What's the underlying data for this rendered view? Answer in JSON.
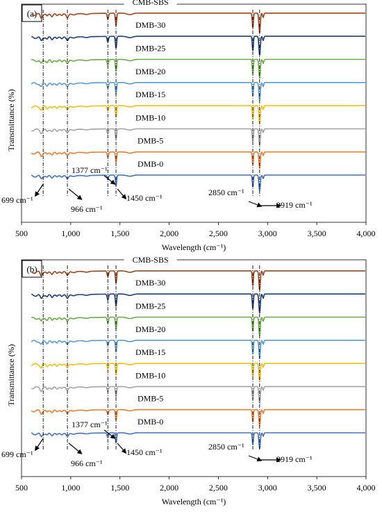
{
  "chart_data": [
    {
      "type": "line",
      "panel_label": "(a)",
      "xlabel": "Wavelength (cm⁻¹)",
      "ylabel": "Transmittance (%)",
      "xlim": [
        500,
        4000
      ],
      "xticks": [
        "500",
        "1,000",
        "1,500",
        "2,000",
        "2,500",
        "3,000",
        "3,500",
        "4,000"
      ],
      "xtick_values": [
        500,
        1000,
        1500,
        2000,
        2500,
        3000,
        3500,
        4000
      ],
      "grid": false,
      "series": [
        {
          "name": "CMB-SBS",
          "color": "#A0461E"
        },
        {
          "name": "DMB-30",
          "color": "#1F3F78"
        },
        {
          "name": "DMB-25",
          "color": "#6AAC45"
        },
        {
          "name": "DMB-20",
          "color": "#5B9BD5"
        },
        {
          "name": "DMB-15",
          "color": "#F2C014"
        },
        {
          "name": "DMB-10",
          "color": "#A5A5A5"
        },
        {
          "name": "DMB-5",
          "color": "#ED7D31"
        },
        {
          "name": "DMB-0",
          "color": "#4472C4"
        }
      ],
      "reference_lines_x": [
        720,
        966,
        1377,
        1460,
        2850,
        2919
      ],
      "annotations": [
        {
          "text": "699 cm⁻¹",
          "x": 699
        },
        {
          "text": "966 cm⁻¹",
          "x": 966
        },
        {
          "text": "1377 cm⁻¹",
          "x": 1377
        },
        {
          "text": "1450 cm⁻¹",
          "x": 1450
        },
        {
          "text": "2850 cm⁻¹",
          "x": 2850
        },
        {
          "text": "2919 cm⁻¹",
          "x": 2919
        }
      ]
    },
    {
      "type": "line",
      "panel_label": "(b)",
      "xlabel": "Wavelength (cm⁻¹)",
      "ylabel": "Transmittance (%)",
      "xlim": [
        500,
        4000
      ],
      "xticks": [
        "500",
        "1,000",
        "1,500",
        "2,000",
        "2,500",
        "3,000",
        "3,500",
        "4,000"
      ],
      "xtick_values": [
        500,
        1000,
        1500,
        2000,
        2500,
        3000,
        3500,
        4000
      ],
      "grid": false,
      "series": [
        {
          "name": "CMB-SBS",
          "color": "#A0461E"
        },
        {
          "name": "DMB-30",
          "color": "#1F3F78"
        },
        {
          "name": "DMB-25",
          "color": "#6AAC45"
        },
        {
          "name": "DMB-20",
          "color": "#5B9BD5"
        },
        {
          "name": "DMB-15",
          "color": "#F2C014"
        },
        {
          "name": "DMB-10",
          "color": "#A5A5A5"
        },
        {
          "name": "DMB-5",
          "color": "#ED7D31"
        },
        {
          "name": "DMB-0",
          "color": "#4472C4"
        }
      ],
      "reference_lines_x": [
        720,
        966,
        1377,
        1460,
        2850,
        2919
      ],
      "annotations": [
        {
          "text": "699 cm⁻¹",
          "x": 699
        },
        {
          "text": "966 cm⁻¹",
          "x": 966
        },
        {
          "text": "1377 cm⁻¹",
          "x": 1377
        },
        {
          "text": "1450 cm⁻¹",
          "x": 1450
        },
        {
          "text": "2850 cm⁻¹",
          "x": 2850
        },
        {
          "text": "2919 cm⁻¹",
          "x": 2919
        }
      ]
    }
  ]
}
